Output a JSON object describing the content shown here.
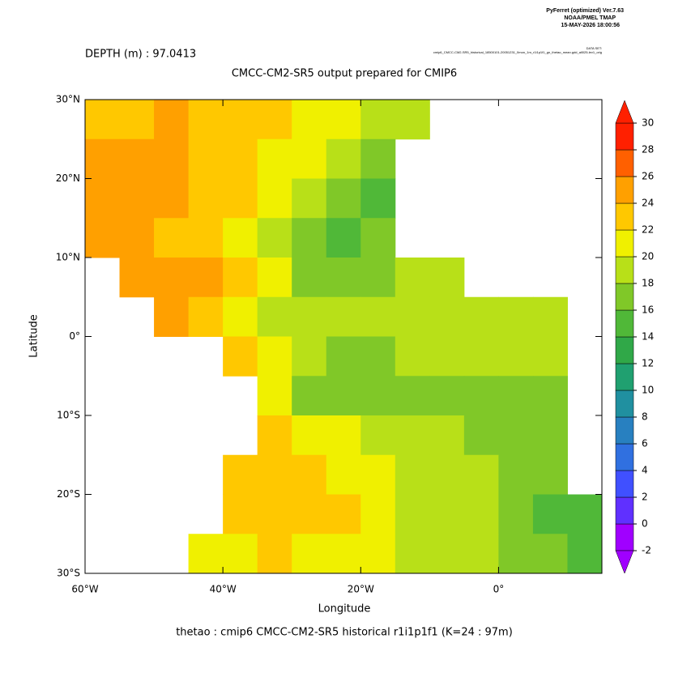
{
  "header": {
    "software": "PyFerret (optimized) Ver.7.63",
    "org": "NOAA/PMEL TMAP",
    "date": "15-MAY-2026 18:00:56",
    "dataset_title": "DATA SET:",
    "dataset": "cmip6_CMCC-CM2-SR5_historical_18500101-20051231_0mon_1m_r1i1p1f1_gn_thetao_mean.gdd_all025-lev1_orig"
  },
  "chart_data": {
    "type": "heatmap",
    "subtitle": "DEPTH (m) : 97.0413",
    "title": "CMCC-CM2-SR5 output prepared for CMIP6",
    "x_label": "Longitude",
    "y_label": "Latitude",
    "footer": "thetao : cmip6 CMCC-CM2-SR5 historical r1i1p1f1   (K=24 : 97m)",
    "xlim": [
      -60,
      15
    ],
    "ylim": [
      -30,
      30
    ],
    "xticks": [
      {
        "value": -60,
        "label": "60°W"
      },
      {
        "value": -40,
        "label": "40°W"
      },
      {
        "value": -20,
        "label": "20°W"
      },
      {
        "value": 0,
        "label": "0°"
      }
    ],
    "yticks": [
      {
        "value": 30,
        "label": "30°N"
      },
      {
        "value": 20,
        "label": "20°N"
      },
      {
        "value": 10,
        "label": "10°N"
      },
      {
        "value": 0,
        "label": "0°"
      },
      {
        "value": -10,
        "label": "10°S"
      },
      {
        "value": -20,
        "label": "20°S"
      },
      {
        "value": -30,
        "label": "30°S"
      }
    ],
    "x": [
      -57.5,
      -52.5,
      -47.5,
      -42.5,
      -37.5,
      -32.5,
      -27.5,
      -22.5,
      -17.5,
      -12.5,
      -7.5,
      -2.5,
      2.5,
      7.5,
      12.5
    ],
    "y": [
      27.5,
      22.5,
      17.5,
      12.5,
      7.5,
      2.5,
      -2.5,
      -7.5,
      -12.5,
      -17.5,
      -22.5,
      -27.5
    ],
    "values": [
      [
        23,
        23,
        24,
        23,
        23,
        22,
        21,
        20,
        19,
        19,
        null,
        null,
        null,
        null,
        null
      ],
      [
        25,
        25,
        24,
        23,
        22,
        21,
        20,
        18,
        17,
        null,
        null,
        null,
        null,
        null,
        null
      ],
      [
        25,
        25,
        24,
        23,
        22,
        20,
        19,
        17,
        15,
        null,
        null,
        null,
        null,
        null,
        null
      ],
      [
        24,
        24,
        23,
        22,
        21,
        19,
        17,
        15,
        16,
        null,
        null,
        null,
        null,
        null,
        null
      ],
      [
        null,
        24,
        25,
        24,
        23,
        20,
        17,
        16,
        17,
        18,
        18,
        null,
        null,
        null,
        null
      ],
      [
        null,
        null,
        24,
        23,
        21,
        19,
        18,
        18,
        18,
        18,
        18,
        18,
        18,
        18,
        null
      ],
      [
        null,
        null,
        null,
        null,
        23,
        20,
        18,
        17,
        17,
        18,
        18,
        18,
        18,
        18,
        null
      ],
      [
        null,
        null,
        null,
        null,
        null,
        21,
        17,
        16,
        16,
        16,
        16,
        17,
        17,
        17,
        null
      ],
      [
        null,
        null,
        null,
        null,
        null,
        22,
        21,
        20,
        19,
        18,
        18,
        17,
        17,
        16,
        null
      ],
      [
        null,
        null,
        null,
        null,
        23,
        23,
        22,
        21,
        20,
        19,
        19,
        18,
        17,
        16,
        null
      ],
      [
        null,
        null,
        null,
        null,
        22,
        23,
        23,
        22,
        21,
        19,
        19,
        18,
        17,
        15,
        14
      ],
      [
        null,
        null,
        null,
        21,
        21,
        22,
        21,
        20,
        20,
        19,
        19,
        18,
        17,
        16,
        14
      ]
    ],
    "clim": [
      -2,
      30
    ],
    "colorbar_ticks": [
      -2,
      0,
      2,
      4,
      6,
      8,
      10,
      12,
      14,
      16,
      18,
      20,
      22,
      24,
      26,
      28,
      30
    ],
    "colors": [
      "#a000ff",
      "#6030ff",
      "#4050ff",
      "#3070e0",
      "#2880c0",
      "#2090a0",
      "#20a070",
      "#30a848",
      "#50b838",
      "#80c828",
      "#b8e018",
      "#f0f000",
      "#ffc800",
      "#ffa000",
      "#ff6000",
      "#ff2000"
    ]
  }
}
